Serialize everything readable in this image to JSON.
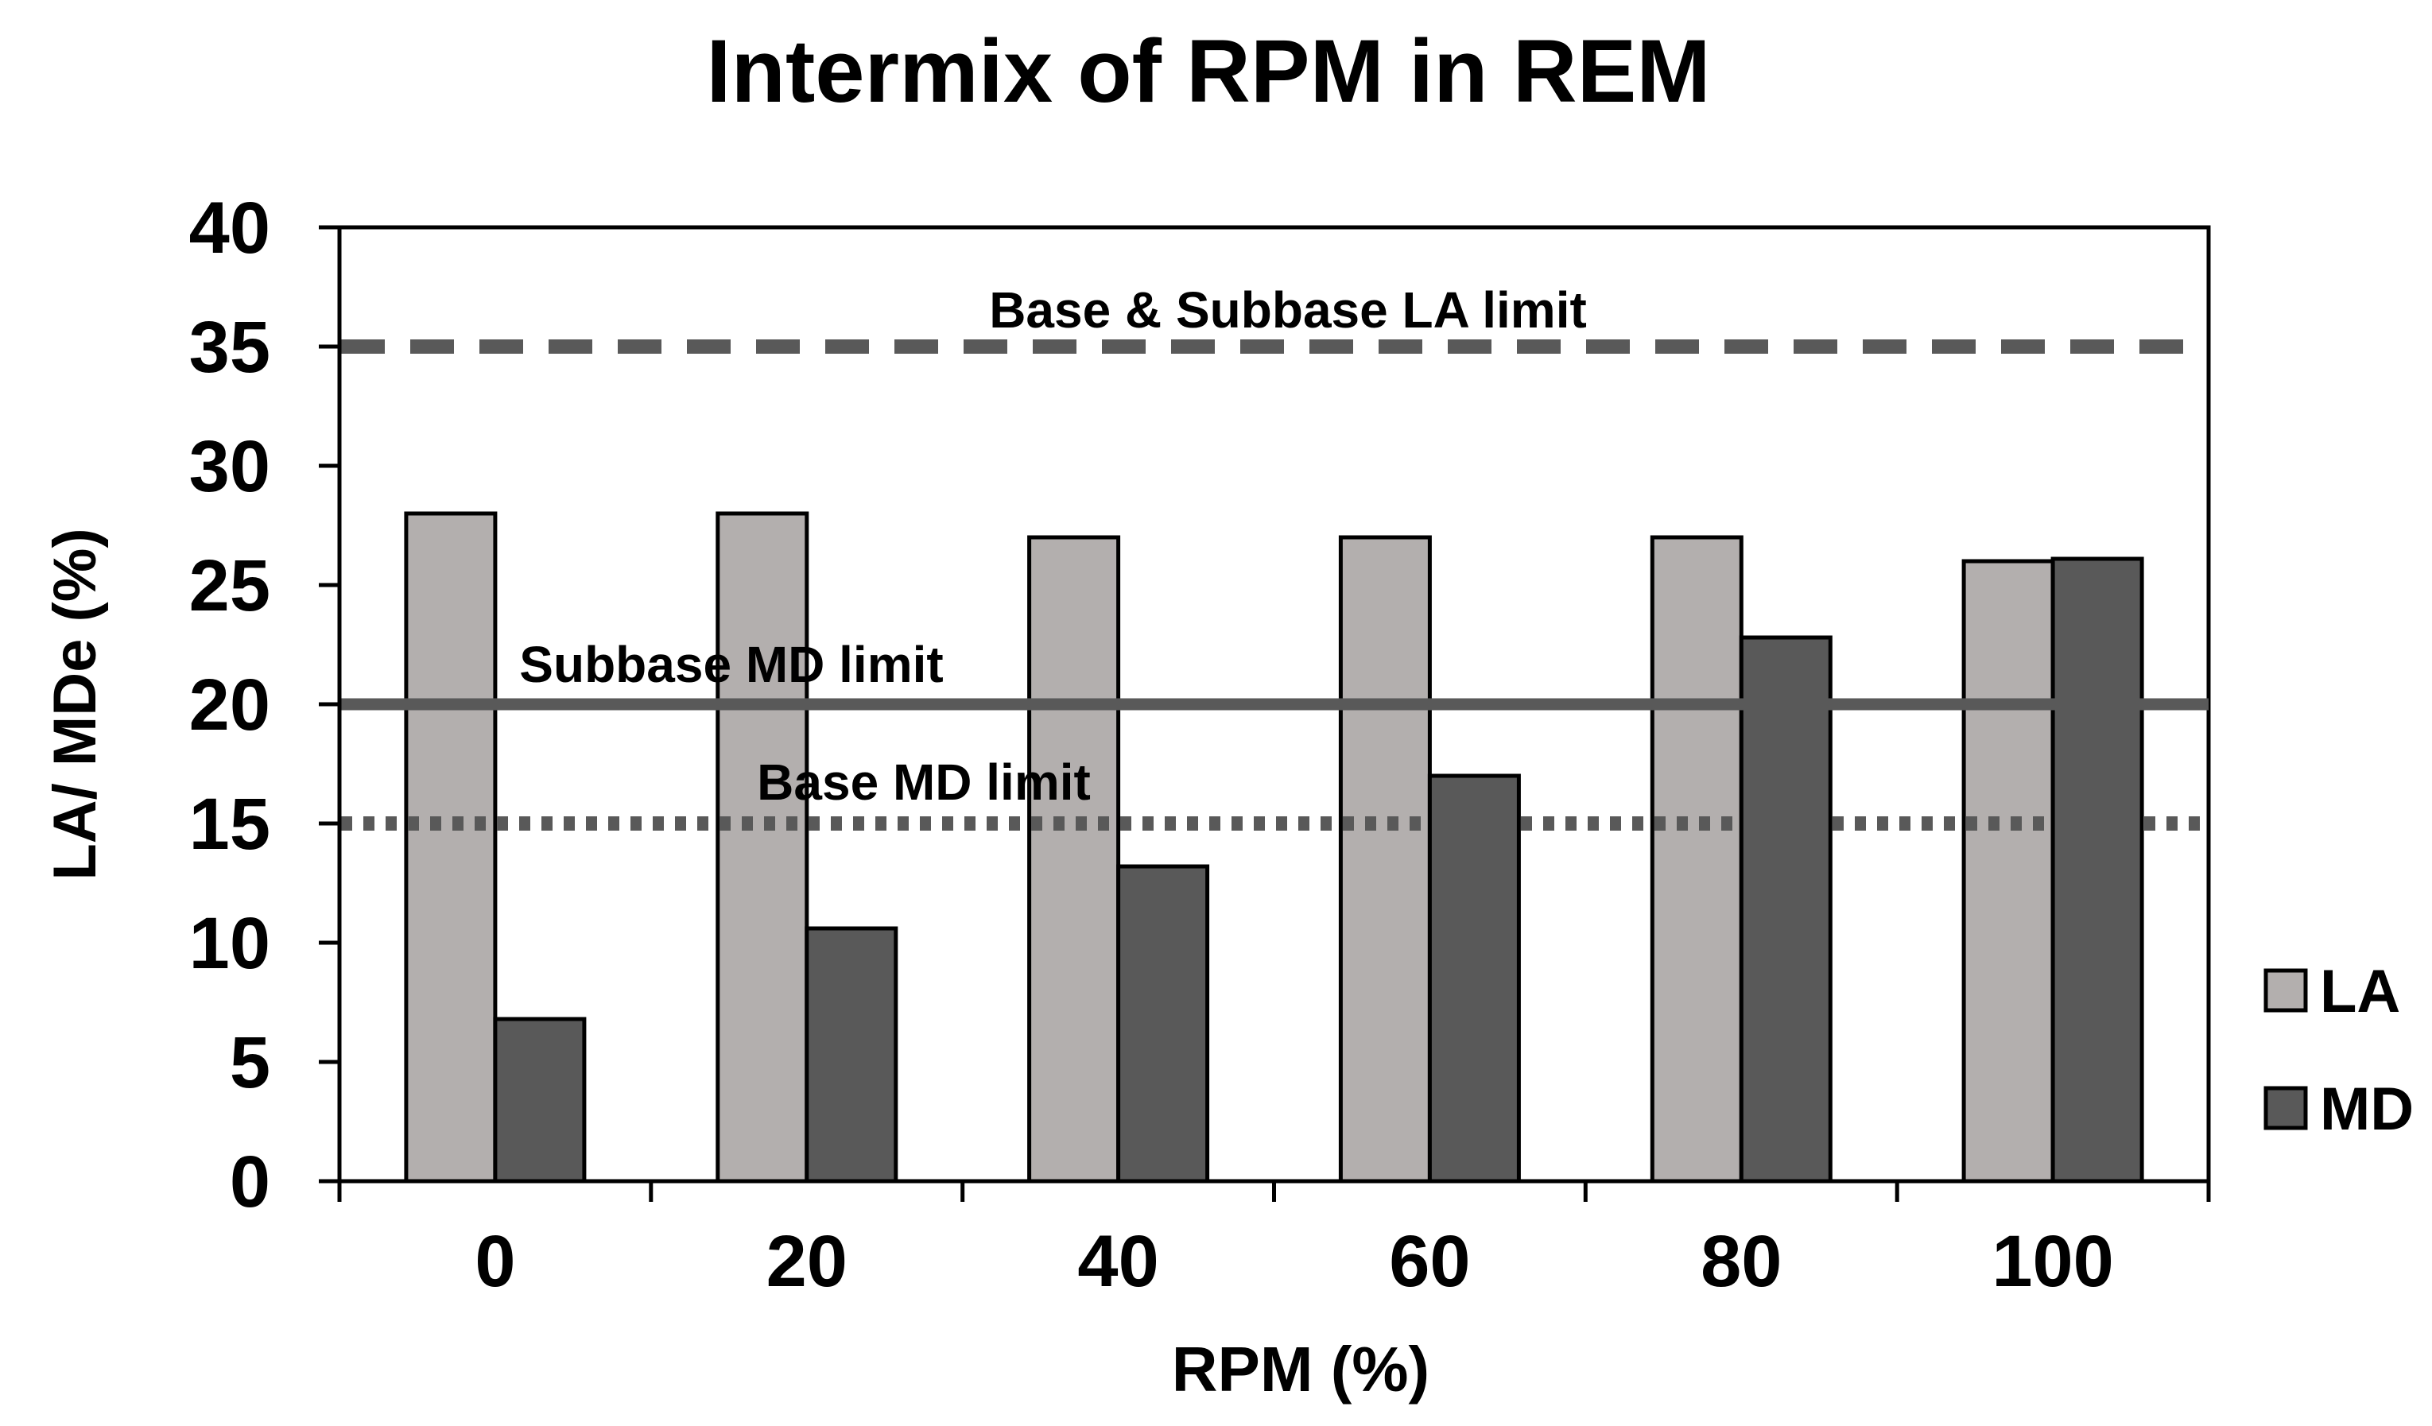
{
  "chart_data": {
    "type": "bar",
    "title": "Intermix of RPM in REM",
    "xlabel": "RPM (%)",
    "ylabel": "LA/ MDe (%)",
    "ylim": [
      0,
      40
    ],
    "yticks": [
      0,
      5,
      10,
      15,
      20,
      25,
      30,
      35,
      40
    ],
    "categories": [
      "0",
      "20",
      "40",
      "60",
      "80",
      "100"
    ],
    "series": [
      {
        "name": "LA",
        "color": "#b3afae",
        "values": [
          28,
          28,
          27,
          27,
          27,
          26
        ]
      },
      {
        "name": "MD",
        "color": "#595959",
        "values": [
          6.8,
          10.6,
          13.2,
          17,
          22.8,
          26.1
        ]
      }
    ],
    "reference_lines": [
      {
        "label": "Base & Subbase LA limit",
        "value": 35,
        "style": "dashed",
        "color": "#595959"
      },
      {
        "label": "Subbase MD limit",
        "value": 20,
        "style": "solid",
        "color": "#595959"
      },
      {
        "label": "Base MD limit",
        "value": 15,
        "style": "dotted",
        "color": "#595959"
      }
    ],
    "legend_position": "right",
    "grid": false
  }
}
